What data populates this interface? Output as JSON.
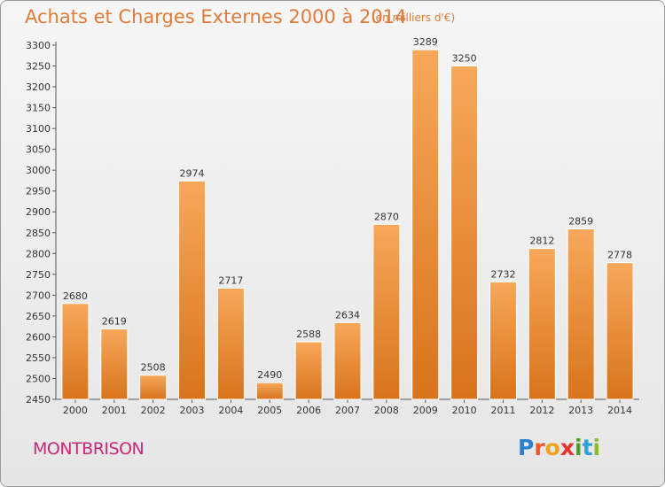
{
  "header": {
    "title": "Achats et Charges Externes 2000 à 2014",
    "subtitle": "(en milliers d'€)"
  },
  "footer": {
    "city": "MONTBRISON",
    "logo_text": "Proxiti",
    "logo_letters": [
      {
        "ch": "P",
        "color": "#2e7fd1"
      },
      {
        "ch": "r",
        "color": "#e85a2b"
      },
      {
        "ch": "o",
        "color": "#f0a21e"
      },
      {
        "ch": "x",
        "color": "#e8312b"
      },
      {
        "ch": "i",
        "color": "#4a9e2f"
      },
      {
        "ch": "t",
        "color": "#2e9fd8"
      },
      {
        "ch": "i",
        "color": "#8dbb2e"
      }
    ]
  },
  "colors": {
    "accent": "#e07b3a",
    "bar_top": "#f7a85a",
    "bar_bottom": "#d8741c",
    "city": "#c8287a"
  },
  "chart_data": {
    "type": "bar",
    "title": "Achats et Charges Externes 2000 à 2014",
    "subtitle": "(en milliers d'€)",
    "categories": [
      "2000",
      "2001",
      "2002",
      "2003",
      "2004",
      "2005",
      "2006",
      "2007",
      "2008",
      "2009",
      "2010",
      "2011",
      "2012",
      "2013",
      "2014"
    ],
    "values": [
      2680,
      2619,
      2508,
      2974,
      2717,
      2490,
      2588,
      2634,
      2870,
      3289,
      3250,
      2732,
      2812,
      2859,
      2778
    ],
    "ylim": [
      2450,
      3300
    ],
    "ytick_step": 50,
    "grid": false,
    "legend": "none"
  }
}
